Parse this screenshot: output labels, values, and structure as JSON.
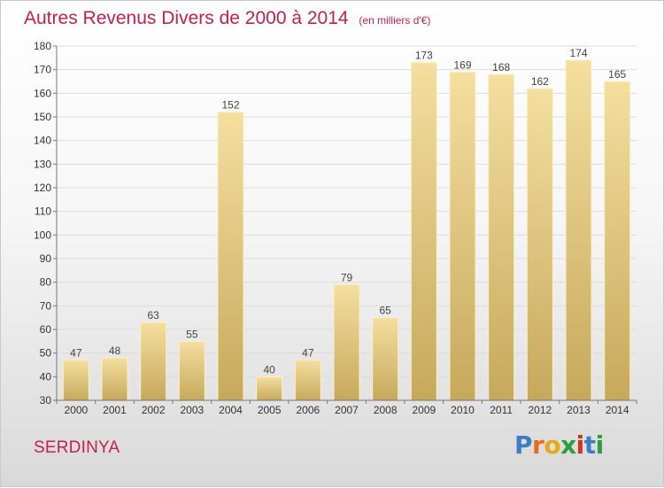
{
  "page": {
    "title": "Autres Revenus Divers de 2000 à 2014",
    "unit": "(en milliers d'€)",
    "commune": "SERDINYA",
    "logo": {
      "text": "Proxiti",
      "letters": [
        {
          "ch": "P",
          "color": "#3a7fc3"
        },
        {
          "ch": "r",
          "color": "#e46b1f"
        },
        {
          "ch": "o",
          "color": "#e6a917"
        },
        {
          "ch": "x",
          "color": "#2e9d3d"
        },
        {
          "ch": "i",
          "color": "#d6331d"
        },
        {
          "ch": "t",
          "color": "#3a7fc3"
        },
        {
          "ch": "i",
          "color": "#2e9d3d"
        }
      ]
    }
  },
  "chart_data": {
    "type": "bar",
    "categories": [
      "2000",
      "2001",
      "2002",
      "2003",
      "2004",
      "2005",
      "2006",
      "2007",
      "2008",
      "2009",
      "2010",
      "2011",
      "2012",
      "2013",
      "2014"
    ],
    "values": [
      47,
      48,
      63,
      55,
      152,
      40,
      47,
      79,
      65,
      173,
      169,
      168,
      162,
      174,
      165
    ],
    "ylim": [
      30,
      180
    ],
    "yticks": [
      30,
      40,
      50,
      60,
      70,
      80,
      90,
      100,
      110,
      120,
      130,
      140,
      150,
      160,
      170,
      180
    ],
    "grid": true,
    "colors": {
      "bar_light": "#f4dfa0",
      "bar_dark": "#c6a95b",
      "bar_edge": "#fbf0c6",
      "grid": "#dddddd",
      "axis": "#777777",
      "title": "#c7204e"
    }
  }
}
